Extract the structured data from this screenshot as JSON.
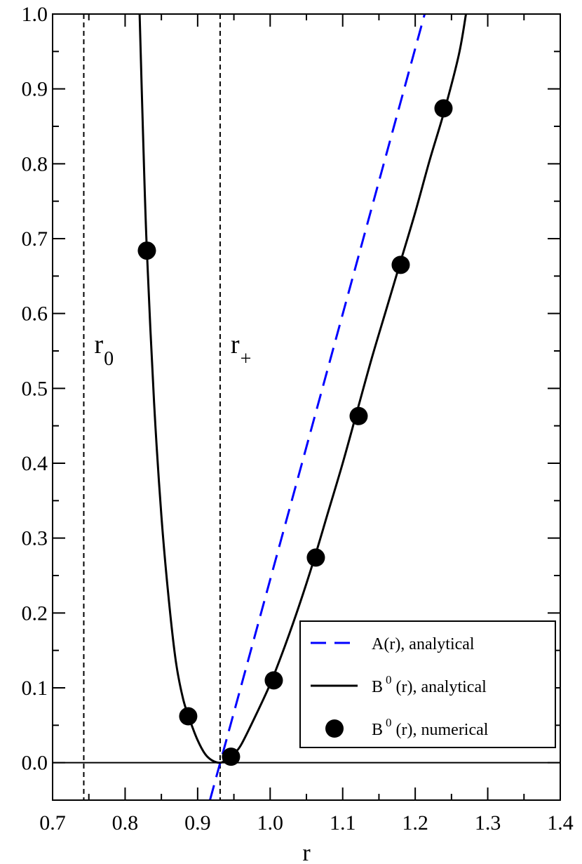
{
  "chart_data": {
    "type": "line",
    "title": "",
    "xlabel": "r",
    "ylabel": "",
    "xlim": [
      0.7,
      1.4
    ],
    "ylim": [
      -0.05,
      1.0
    ],
    "x_ticks": [
      0.7,
      0.8,
      0.9,
      1.0,
      1.1,
      1.2,
      1.3,
      1.4
    ],
    "x_tick_labels": [
      "0.7",
      "0.8",
      "0.9",
      "1.0",
      "1.1",
      "1.2",
      "1.3",
      "1.4"
    ],
    "y_ticks": [
      0.0,
      0.1,
      0.2,
      0.3,
      0.4,
      0.5,
      0.6,
      0.7,
      0.8,
      0.9,
      1.0
    ],
    "y_tick_labels": [
      "0.0",
      "0.1",
      "0.2",
      "0.3",
      "0.4",
      "0.5",
      "0.6",
      "0.7",
      "0.8",
      "0.9",
      "1.0"
    ],
    "grid": false,
    "legend_position": "bottom-right",
    "reference_lines": [
      {
        "axis": "x",
        "value": 0.743,
        "style": "dashed",
        "color": "#000000",
        "label_main": "r",
        "label_sub": "0"
      },
      {
        "axis": "x",
        "value": 0.931,
        "style": "dashed",
        "color": "#000000",
        "label_main": "r",
        "label_sub": "+"
      },
      {
        "axis": "y",
        "value": 0.0,
        "style": "solid",
        "color": "#000000"
      }
    ],
    "series": [
      {
        "name": "A(r), analytical",
        "legend_main": "A(r), analytical",
        "legend_sup": "",
        "style": "dashed",
        "color": "#0000ff",
        "x": [
          0.917,
          1.213
        ],
        "y": [
          -0.05,
          1.0
        ]
      },
      {
        "name": "B0(r), analytical",
        "legend_main": "B",
        "legend_sup": "0",
        "legend_rest": "(r), analytical",
        "style": "solid",
        "color": "#000000",
        "x": [
          0.82,
          0.825,
          0.83,
          0.84,
          0.85,
          0.86,
          0.87,
          0.88,
          0.89,
          0.9,
          0.91,
          0.92,
          0.931,
          0.94,
          0.95,
          0.96,
          0.98,
          1.0,
          1.02,
          1.04,
          1.06,
          1.08,
          1.1,
          1.12,
          1.14,
          1.16,
          1.18,
          1.2,
          1.22,
          1.24,
          1.26,
          1.27
        ],
        "y": [
          1.0,
          0.83,
          0.684,
          0.48,
          0.33,
          0.22,
          0.135,
          0.085,
          0.055,
          0.03,
          0.012,
          0.003,
          0.0,
          0.004,
          0.012,
          0.024,
          0.063,
          0.105,
          0.155,
          0.21,
          0.27,
          0.335,
          0.4,
          0.47,
          0.54,
          0.605,
          0.67,
          0.735,
          0.805,
          0.87,
          0.945,
          1.0
        ]
      },
      {
        "name": "B0(r), numerical",
        "legend_main": "B",
        "legend_sup": "0",
        "legend_rest": "(r), numerical",
        "style": "markers",
        "color": "#000000",
        "x": [
          0.83,
          0.887,
          0.946,
          1.005,
          1.063,
          1.122,
          1.18,
          1.239
        ],
        "y": [
          0.684,
          0.062,
          0.008,
          0.11,
          0.274,
          0.463,
          0.665,
          0.874
        ]
      }
    ]
  }
}
